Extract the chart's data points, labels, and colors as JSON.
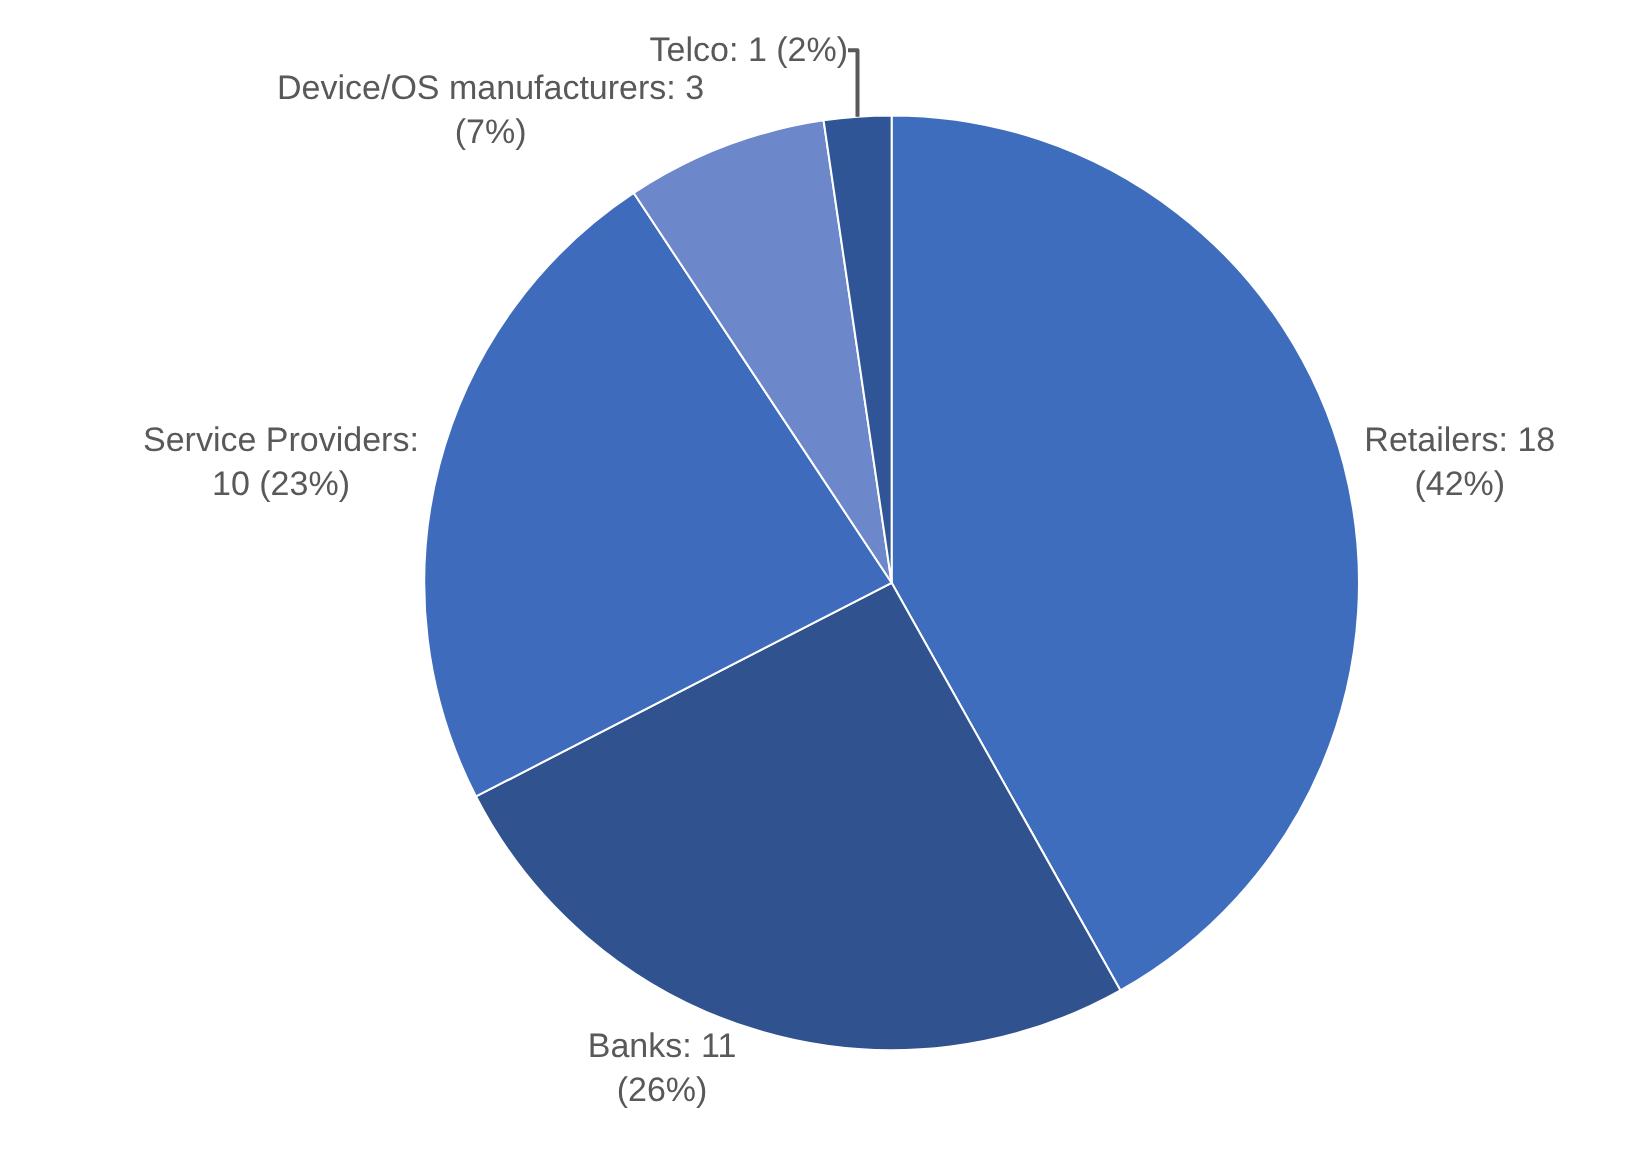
{
  "chart_data": {
    "type": "pie",
    "categories": [
      "Retailers: 18 (42%)",
      "Banks: 11 (26%)",
      "Service Providers: 10 (23%)",
      "Device/OS manufacturers: 3 (7%)",
      "Telco: 1 (2%)"
    ],
    "values": [
      18,
      11,
      10,
      3,
      1
    ],
    "colors": [
      "#3f6dbd",
      "#30538f",
      "#3e6bbb",
      "#6c88cb",
      "#2f5597"
    ]
  }
}
